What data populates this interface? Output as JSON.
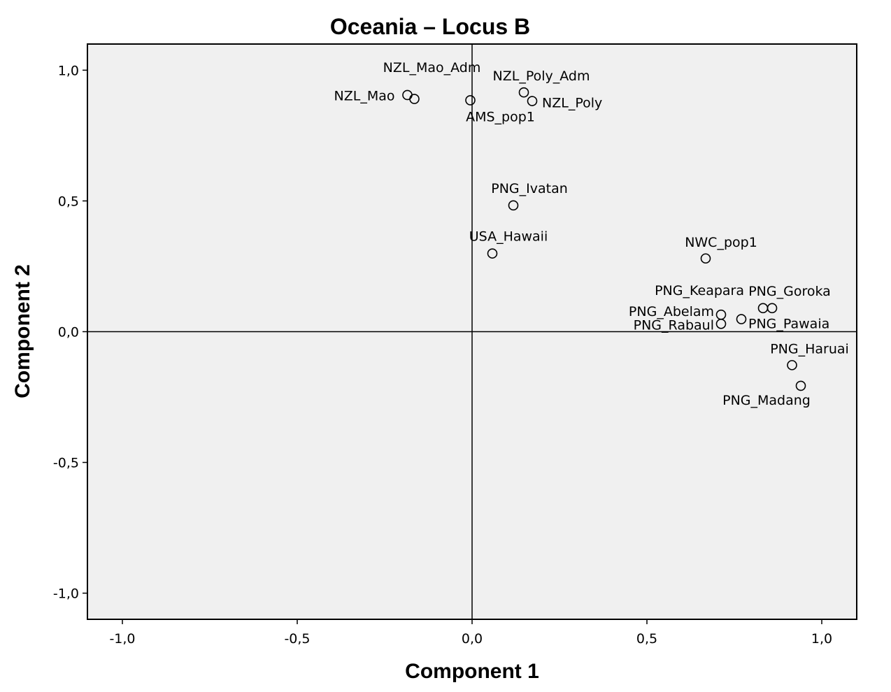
{
  "chart_data": {
    "type": "scatter",
    "title": "Oceania – Locus B",
    "xlabel": "Component 1",
    "ylabel": "Component 2",
    "xlim": [
      -1.1,
      1.1
    ],
    "ylim": [
      -1.1,
      1.1
    ],
    "xticks": [
      -1.0,
      -0.5,
      0.0,
      0.5,
      1.0
    ],
    "yticks": [
      1.0,
      0.5,
      0.0,
      -0.5,
      -1.0
    ],
    "xtick_labels": [
      "-1,0",
      "-0,5",
      "0,0",
      "0,5",
      "1,0"
    ],
    "ytick_labels": [
      "1,0",
      "0,5",
      "0,0",
      "-0,5",
      "-1,0"
    ],
    "reference_lines": {
      "x": 0.0,
      "y": 0.0
    },
    "grid": false,
    "plot_background": "#f0f0f0",
    "points": [
      {
        "label": "NZL_Mao_Adm",
        "x": -0.185,
        "y": 0.905
      },
      {
        "label": "NZL_Mao",
        "x": -0.165,
        "y": 0.89
      },
      {
        "label": "AMS_pop1",
        "x": -0.005,
        "y": 0.885
      },
      {
        "label": "NZL_Poly_Adm",
        "x": 0.148,
        "y": 0.915
      },
      {
        "label": "NZL_Poly",
        "x": 0.172,
        "y": 0.882
      },
      {
        "label": "PNG_Ivatan",
        "x": 0.118,
        "y": 0.483
      },
      {
        "label": "USA_Hawaii",
        "x": 0.058,
        "y": 0.299
      },
      {
        "label": "NWC_pop1",
        "x": 0.668,
        "y": 0.28
      },
      {
        "label": "PNG_Keapara",
        "x": 0.832,
        "y": 0.09
      },
      {
        "label": "PNG_Goroka",
        "x": 0.858,
        "y": 0.09
      },
      {
        "label": "PNG_Abelam",
        "x": 0.712,
        "y": 0.065
      },
      {
        "label": "PNG_Rabaul",
        "x": 0.712,
        "y": 0.03
      },
      {
        "label": "PNG_Pawaia",
        "x": 0.77,
        "y": 0.048
      },
      {
        "label": "PNG_Haruai",
        "x": 0.915,
        "y": -0.128
      },
      {
        "label": "PNG_Madang",
        "x": 0.94,
        "y": -0.207
      }
    ]
  }
}
